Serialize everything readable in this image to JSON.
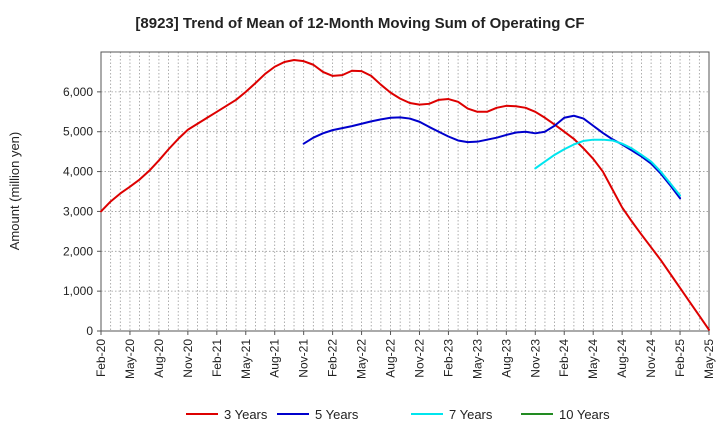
{
  "chart_data": {
    "type": "line",
    "title": "[8923]  Trend of Mean of 12-Month Moving Sum of Operating CF",
    "xlabel": "",
    "ylabel": "Amount (million yen)",
    "ylim": [
      0,
      7000
    ],
    "yticks": [
      0,
      1000,
      2000,
      3000,
      4000,
      5000,
      6000
    ],
    "ytick_labels": [
      "0",
      "1,000",
      "2,000",
      "3,000",
      "4,000",
      "5,000",
      "6,000"
    ],
    "xlim": [
      "Feb-20",
      "May-25"
    ],
    "xtick_labels": [
      "Feb-20",
      "May-20",
      "Aug-20",
      "Nov-20",
      "Feb-21",
      "May-21",
      "Aug-21",
      "Nov-21",
      "Feb-22",
      "May-22",
      "Aug-22",
      "Nov-22",
      "Feb-23",
      "May-23",
      "Aug-23",
      "Nov-23",
      "Feb-24",
      "May-24",
      "Aug-24",
      "Nov-24",
      "Feb-25",
      "May-25"
    ],
    "grid": true,
    "legend_position": "bottom",
    "series": [
      {
        "name": "3 Years",
        "color": "#dd0000",
        "start": "Feb-20",
        "values": [
          3000,
          3250,
          3450,
          3620,
          3800,
          4020,
          4280,
          4560,
          4820,
          5050,
          5200,
          5350,
          5500,
          5650,
          5800,
          6000,
          6220,
          6450,
          6630,
          6750,
          6800,
          6770,
          6680,
          6500,
          6400,
          6420,
          6530,
          6520,
          6400,
          6180,
          5980,
          5830,
          5720,
          5680,
          5700,
          5800,
          5820,
          5750,
          5580,
          5500,
          5500,
          5600,
          5650,
          5640,
          5600,
          5500,
          5350,
          5180,
          5000,
          4820,
          4580,
          4320,
          4000,
          3550,
          3100,
          2750,
          2420,
          2100,
          1780,
          1430,
          1080,
          730,
          380,
          30
        ]
      },
      {
        "name": "5 Years",
        "color": "#0000cc",
        "start": "Nov-21",
        "values": [
          4700,
          4850,
          4960,
          5040,
          5090,
          5140,
          5200,
          5260,
          5310,
          5350,
          5360,
          5330,
          5250,
          5120,
          5000,
          4880,
          4780,
          4740,
          4750,
          4800,
          4850,
          4920,
          4980,
          5000,
          4960,
          5000,
          5150,
          5350,
          5400,
          5330,
          5150,
          4970,
          4810,
          4680,
          4530,
          4380,
          4200,
          3950,
          3650,
          3330
        ]
      },
      {
        "name": "7 Years",
        "color": "#00e5ee",
        "start": "Nov-23",
        "values": [
          4080,
          4250,
          4420,
          4560,
          4680,
          4770,
          4800,
          4800,
          4780,
          4700,
          4580,
          4420,
          4250,
          4000,
          3700,
          3400
        ]
      },
      {
        "name": "10 Years",
        "color": "#228b22",
        "start": "Feb-25",
        "values": []
      }
    ]
  }
}
